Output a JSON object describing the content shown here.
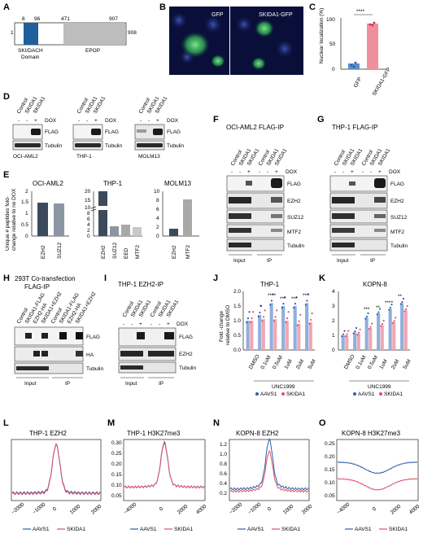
{
  "panels": {
    "A": {
      "letter": "A",
      "positions": [
        "1",
        "6",
        "96",
        "471",
        "907",
        "908"
      ],
      "domain1": "SKI/DACH",
      "domain1b": "Domain",
      "domain2": "EPOP",
      "colors": {
        "ski": "#1f5f9b",
        "epop": "#bdbdbd"
      }
    },
    "B": {
      "letter": "B",
      "left_label": "GFP",
      "right_label": "SKIDA1-GFP"
    },
    "C": {
      "letter": "C",
      "sig": "****",
      "ylabel": "Nuclear localization (%)",
      "yticks": [
        "0",
        "50",
        "100"
      ],
      "categories": [
        "GFP",
        "SKIDA1-GFP"
      ],
      "colors": {
        "gfp": "#5b8fc9",
        "skida1": "#f08f9c"
      }
    },
    "D": {
      "letter": "D",
      "lanes": [
        "Control",
        "SKIDA1",
        "SKIDA1"
      ],
      "dox": [
        "-",
        "-",
        "+"
      ],
      "dox_label": "DOX",
      "rows": [
        "FLAG",
        "Tubulin"
      ],
      "cells": [
        "OCI-AML2",
        "THP-1",
        "MOLM13"
      ]
    },
    "E": {
      "letter": "E",
      "ylabel_1": "Unique # peptides fold-",
      "ylabel_2": "change relative to no DOX",
      "titles": [
        "OCI-AML2",
        "THP-1",
        "MOLM13"
      ],
      "yt1": [
        "0",
        "0.5",
        "1",
        "1.5",
        "2"
      ],
      "yt2": [
        "0",
        "2",
        "4",
        "6",
        "8",
        "10",
        "15",
        "20"
      ],
      "yt3": [
        "0",
        "2",
        "4",
        "6",
        "8",
        "10"
      ],
      "colors": {
        "ezh2": "#3c4a5c",
        "suz12": "#8c96a3",
        "eed": "#a8a8a8",
        "mtf2": "#c8c8c8"
      }
    },
    "F": {
      "letter": "F",
      "title": "OCI-AML2 FLAG-IP",
      "lanes": [
        "Control",
        "SKIDA1",
        "SKIDA1",
        "Control",
        "SKIDA1",
        "SKIDA1"
      ],
      "dox": [
        "-",
        "-",
        "+",
        "-",
        "-",
        "+"
      ],
      "dox_label": "DOX",
      "rows": [
        "FLAG",
        "EZH2",
        "SUZ12",
        "MTF2",
        "Tubulin"
      ],
      "groups": [
        "Input",
        "IP"
      ]
    },
    "G": {
      "letter": "G",
      "title": "THP-1 FLAG-IP",
      "lanes": [
        "Control",
        "SKIDA1",
        "SKIDA1",
        "Control",
        "SKIDA1",
        "SKIDA1"
      ],
      "dox": [
        "-",
        "-",
        "+",
        "-",
        "-",
        "+"
      ],
      "dox_label": "DOX",
      "rows": [
        "FLAG",
        "EZH2",
        "SUZ12",
        "MTF2",
        "Tubulin"
      ],
      "groups": [
        "Input",
        "IP"
      ]
    },
    "H": {
      "letter": "H",
      "title_1": "293T Co-transfection",
      "title_2": "FLAG-IP",
      "lanes": [
        "Control",
        "SKIDA1-FLAG",
        "EZH2-HA",
        "SKIDA1+EZH2",
        "Control",
        "SKIDA1-FLAG",
        "EZH2-HA",
        "SKIDA1+EZH2"
      ],
      "rows": [
        "FLAG",
        "HA",
        "Tubulin"
      ],
      "groups": [
        "Input",
        "IP"
      ]
    },
    "I": {
      "letter": "I",
      "title": "THP-1 EZH2-IP",
      "lanes": [
        "Control",
        "SKIDA1",
        "SKIDA1",
        "Control",
        "SKIDA1",
        "SKIDA1"
      ],
      "dox": [
        "-",
        "-",
        "+",
        "-",
        "-",
        "+"
      ],
      "dox_label": "DOX",
      "rows": [
        "FLAG",
        "EZH2",
        "Tubulin"
      ],
      "groups": [
        "Input",
        "IP"
      ]
    },
    "J": {
      "letter": "J",
      "title": "THP-1",
      "ylabel_1": "Fold -change",
      "ylabel_2": "relative to DMSO",
      "yticks": [
        "0.0",
        "0.5",
        "1.0",
        "1.5",
        "2.0"
      ],
      "categories": [
        "DMSO",
        "0.1uM",
        "0.5uM",
        "1uM",
        "2uM",
        "5uM"
      ],
      "drug": "UNC1999",
      "sig": [
        "*",
        "****",
        "***",
        "***",
        "***"
      ],
      "legend": [
        "AAVS1",
        "SKIDA1"
      ]
    },
    "K": {
      "letter": "K",
      "title": "KOPN-8",
      "yticks": [
        "0",
        "1",
        "2",
        "3",
        "4"
      ],
      "categories": [
        "DMSO",
        "0.1uM",
        "0.5uM",
        "1uM",
        "2uM",
        "5uM"
      ],
      "drug": "UNC1999",
      "sig": [
        "***",
        "**",
        "****",
        "**"
      ],
      "legend": [
        "AAVS1",
        "SKIDA1"
      ]
    },
    "L": {
      "letter": "L",
      "title": "THP-1 EZH2",
      "xticks": [
        "−2000",
        "−1000",
        "0",
        "1000",
        "2000"
      ],
      "legend": [
        "AAVS1",
        "SKIDA1"
      ]
    },
    "M": {
      "letter": "M",
      "title": "THP-1 H3K27me3",
      "yticks": [
        "0.05",
        "0.10",
        "0.15",
        "0.20",
        "0.25",
        "0.30"
      ],
      "xticks": [
        "−4000",
        "0",
        "2000",
        "4000"
      ],
      "legend": [
        "AAVS1",
        "SKIDA1"
      ]
    },
    "N": {
      "letter": "N",
      "title": "KOPN-8 EZH2",
      "yticks": [
        "0.2",
        "0.4",
        "0.6",
        "0.8",
        "1.0",
        "1.2"
      ],
      "xticks": [
        "−2000",
        "−1000",
        "0",
        "1000",
        "2000"
      ],
      "legend": [
        "AAVS1",
        "SKIDA1"
      ]
    },
    "O": {
      "letter": "O",
      "title": "KOPN-8 H3K27me3",
      "yticks": [
        "0.05",
        "0.10",
        "0.15",
        "0.20",
        "0.25"
      ],
      "xticks": [
        "−4000",
        "0",
        "2000",
        "4000"
      ],
      "legend": [
        "AAVS1",
        "SKIDA1"
      ]
    }
  },
  "colors": {
    "aavs1": "#2f5fa7",
    "skida1": "#e0506a",
    "blot_dark": "#1a1a1a"
  },
  "chart_data": [
    {
      "type": "bar",
      "panel": "C",
      "categories": [
        "GFP",
        "SKIDA1-GFP"
      ],
      "values": [
        12,
        91
      ],
      "ylim": [
        0,
        100
      ],
      "ylabel": "Nuclear localization (%)"
    },
    {
      "type": "bar",
      "panel": "E",
      "title": "OCI-AML2",
      "categories": [
        "EZH2",
        "SUZ12"
      ],
      "values": [
        1.5,
        1.45
      ],
      "ylim": [
        0,
        2
      ]
    },
    {
      "type": "bar",
      "panel": "E",
      "title": "THP-1",
      "categories": [
        "EZH2",
        "SUZ12",
        "EED",
        "MTF2"
      ],
      "values": [
        20,
        3.5,
        4.0,
        3.0
      ],
      "ylim": [
        0,
        20
      ]
    },
    {
      "type": "bar",
      "panel": "E",
      "title": "MOLM13",
      "categories": [
        "EZH2",
        "MTF2"
      ],
      "values": [
        1.7,
        8.2
      ],
      "ylim": [
        0,
        10
      ]
    },
    {
      "type": "bar",
      "panel": "J",
      "title": "THP-1",
      "categories": [
        "DMSO",
        "0.1uM",
        "0.5uM",
        "1uM",
        "2uM",
        "5uM"
      ],
      "series": [
        {
          "name": "AAVS1",
          "values": [
            1.0,
            1.2,
            1.6,
            1.5,
            1.5,
            1.6
          ]
        },
        {
          "name": "SKIDA1",
          "values": [
            1.0,
            1.05,
            1.05,
            1.0,
            0.9,
            0.95
          ]
        }
      ],
      "ylim": [
        0,
        2.0
      ],
      "xlabel": "UNC1999"
    },
    {
      "type": "bar",
      "panel": "K",
      "title": "KOPN-8",
      "categories": [
        "DMSO",
        "0.1uM",
        "0.5uM",
        "1uM",
        "2uM",
        "5uM"
      ],
      "series": [
        {
          "name": "AAVS1",
          "values": [
            1.0,
            1.2,
            2.2,
            2.5,
            2.8,
            3.2
          ]
        },
        {
          "name": "SKIDA1",
          "values": [
            1.0,
            1.1,
            1.5,
            1.7,
            1.9,
            2.7
          ]
        }
      ],
      "ylim": [
        0,
        4
      ],
      "xlabel": "UNC1999"
    },
    {
      "type": "line",
      "panel": "L",
      "title": "THP-1 EZH2",
      "x": [
        -2000,
        -1000,
        0,
        1000,
        2000
      ],
      "series": [
        {
          "name": "AAVS1",
          "values": [
            0.28,
            0.32,
            1.0,
            0.32,
            0.28
          ]
        },
        {
          "name": "SKIDA1",
          "values": [
            0.27,
            0.3,
            1.0,
            0.3,
            0.27
          ]
        }
      ]
    },
    {
      "type": "line",
      "panel": "M",
      "title": "THP-1 H3K27me3",
      "x": [
        -4000,
        -2000,
        0,
        2000,
        4000
      ],
      "ylim": [
        0.05,
        0.3
      ],
      "series": [
        {
          "name": "AAVS1",
          "values": [
            0.1,
            0.12,
            0.29,
            0.12,
            0.1
          ]
        },
        {
          "name": "SKIDA1",
          "values": [
            0.1,
            0.12,
            0.285,
            0.12,
            0.1
          ]
        }
      ]
    },
    {
      "type": "line",
      "panel": "N",
      "title": "KOPN-8 EZH2",
      "x": [
        -2000,
        -1000,
        0,
        1000,
        2000
      ],
      "ylim": [
        0.1,
        1.3
      ],
      "series": [
        {
          "name": "AAVS1",
          "values": [
            0.3,
            0.5,
            1.25,
            0.5,
            0.3
          ]
        },
        {
          "name": "SKIDA1",
          "values": [
            0.25,
            0.4,
            1.02,
            0.4,
            0.25
          ]
        }
      ]
    },
    {
      "type": "line",
      "panel": "O",
      "title": "KOPN-8 H3K27me3",
      "x": [
        -4000,
        -2000,
        0,
        2000,
        4000
      ],
      "ylim": [
        0.05,
        0.25
      ],
      "series": [
        {
          "name": "AAVS1",
          "values": [
            0.18,
            0.16,
            0.14,
            0.16,
            0.18
          ]
        },
        {
          "name": "SKIDA1",
          "values": [
            0.12,
            0.1,
            0.08,
            0.1,
            0.12
          ]
        }
      ]
    }
  ]
}
